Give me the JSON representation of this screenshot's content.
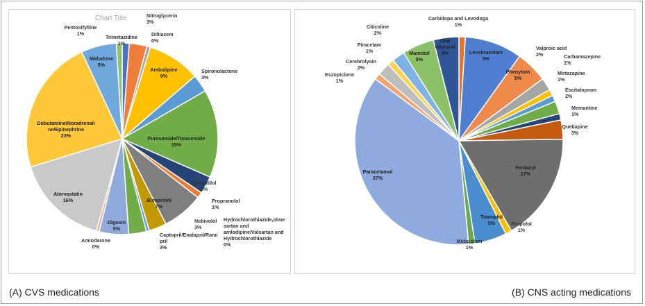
{
  "chart_data": [
    {
      "type": "pie",
      "title": "Chart Title",
      "caption": "(A) CVS medications",
      "slices": [
        {
          "label": "Trimetazidine",
          "pct": "1%",
          "value": 1.2,
          "color": "#4c72c4"
        },
        {
          "label": "Nitroglycerin",
          "pct": "3%",
          "value": 3,
          "color": "#f07e3a"
        },
        {
          "label": "Diltiazem",
          "pct": "0%",
          "value": 0.6,
          "color": "#a5a5a5"
        },
        {
          "label": "Amlodipine",
          "pct": "9%",
          "value": 9,
          "color": "#ffc000"
        },
        {
          "label": "Spironolactone",
          "pct": "3%",
          "value": 3,
          "color": "#5b9bd5"
        },
        {
          "label": "Furosemide/Torasemide",
          "pct": "15%",
          "value": 15,
          "color": "#70ad47"
        },
        {
          "label": "Carvedilol",
          "pct": "3%",
          "value": 3,
          "color": "#264478"
        },
        {
          "label": "Propranolol",
          "pct": "1%",
          "value": 1,
          "color": "#ed7d31"
        },
        {
          "label": "Bisoprolol",
          "pct": "7%",
          "value": 7,
          "color": "#7f7f7f"
        },
        {
          "label": "Nebivolol",
          "pct": "3%",
          "value": 3,
          "color": "#c49800"
        },
        {
          "label": "Hydrochlorothiazide,olmesartan and amlodipine/Valsartan and Hydrochlorothiazide",
          "pct": "0%",
          "value": 0.5,
          "color": "#5b9bd5"
        },
        {
          "label": "Captopril/Enalapril/Ramipril",
          "pct": "3%",
          "value": 3,
          "color": "#70ad47"
        },
        {
          "label": "Digoxin",
          "pct": "5%",
          "value": 5,
          "color": "#8faadc"
        },
        {
          "label": "Amiodarone",
          "pct": "0%",
          "value": 0.5,
          "color": "#f4b183"
        },
        {
          "label": "Atorvastatin",
          "pct": "16%",
          "value": 16,
          "color": "#c9c9c9"
        },
        {
          "label": "Dobutamine/Noradrenaline/Epinephrine",
          "pct": "23%",
          "value": 23,
          "color": "#ffc839"
        },
        {
          "label": "Midodrine",
          "pct": "6%",
          "value": 6,
          "color": "#6fa8dc"
        },
        {
          "label": "Pentoxifylline",
          "pct": "1%",
          "value": 1,
          "color": "#8fc26a"
        }
      ]
    },
    {
      "type": "pie",
      "caption": "(B) CNS acting medications",
      "slices": [
        {
          "label": "Carbidopa and Levodoga",
          "pct": "1%",
          "value": 1,
          "color": "#e2742c"
        },
        {
          "label": "Levetiracetam",
          "pct": "9%",
          "value": 9,
          "color": "#4f7fd1"
        },
        {
          "label": "Phenytoin",
          "pct": "5%",
          "value": 5,
          "color": "#f08a4b"
        },
        {
          "label": "Valproic acid",
          "pct": "2%",
          "value": 2,
          "color": "#a5a5a5"
        },
        {
          "label": "Carbamazepine",
          "pct": "1%",
          "value": 1,
          "color": "#ffc000"
        },
        {
          "label": "Mirtazapine",
          "pct": "1%",
          "value": 1,
          "color": "#5b9bd5"
        },
        {
          "label": "Escitalopram",
          "pct": "2%",
          "value": 2,
          "color": "#70ad47"
        },
        {
          "label": "Memantine",
          "pct": "1%",
          "value": 1,
          "color": "#264478"
        },
        {
          "label": "Quetiapine",
          "pct": "3%",
          "value": 3,
          "color": "#c55a11"
        },
        {
          "label": "Fentanyl",
          "pct": "17%",
          "value": 17,
          "color": "#6e6e6e"
        },
        {
          "label": "Propofol",
          "pct": "1%",
          "value": 1,
          "color": "#ffc000"
        },
        {
          "label": "Tramadol",
          "pct": "5%",
          "value": 5,
          "color": "#4a8ed0"
        },
        {
          "label": "Midazolam",
          "pct": "1%",
          "value": 1,
          "color": "#6aa84f"
        },
        {
          "label": "Paracetamol",
          "pct": "37%",
          "value": 37,
          "color": "#8eaadf"
        },
        {
          "label": "Eszopiclone",
          "pct": "1%",
          "value": 1,
          "color": "#f4a46a"
        },
        {
          "label": "Cerebrolysin",
          "pct": "2%",
          "value": 2,
          "color": "#bdbdbd"
        },
        {
          "label": "Piracetam",
          "pct": "1%",
          "value": 1,
          "color": "#ffd34d"
        },
        {
          "label": "Citicoline",
          "pct": "2%",
          "value": 2,
          "color": "#7fb2e5"
        },
        {
          "label": "Mannitol",
          "pct": "5%",
          "value": 5,
          "color": "#8cc168"
        },
        {
          "label": "Oral Glycerol",
          "pct": "4%",
          "value": 4,
          "color": "#2f5597"
        }
      ]
    }
  ]
}
